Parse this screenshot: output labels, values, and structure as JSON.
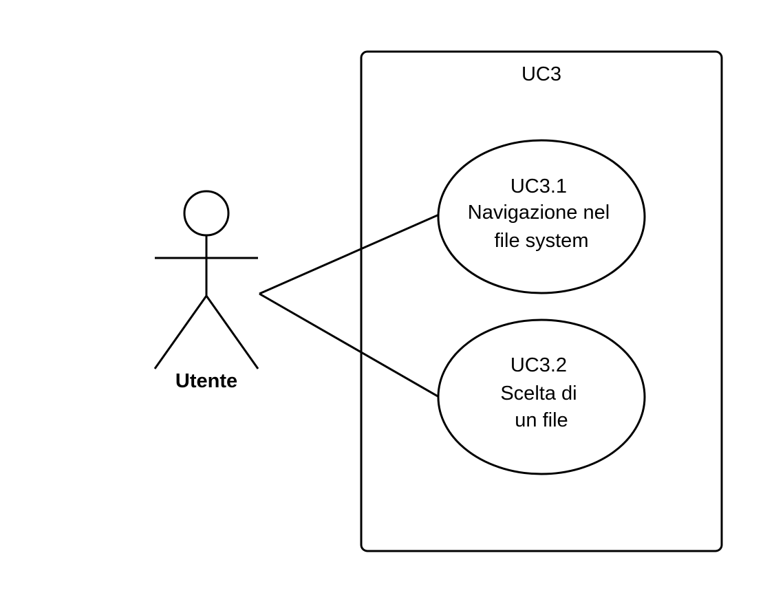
{
  "diagram": {
    "type": "uml-use-case",
    "colors": {
      "stroke": "#000000",
      "fill": "#ffffff",
      "text": "#000000"
    },
    "system": {
      "title": "UC3"
    },
    "actor": {
      "name": "Utente"
    },
    "use_cases": [
      {
        "id": "UC3.1",
        "lines": [
          "UC3.1",
          "Navigazione nel",
          "file system"
        ]
      },
      {
        "id": "UC3.2",
        "lines": [
          "UC3.2",
          "Scelta di",
          "un file"
        ]
      }
    ],
    "associations": [
      {
        "from": "Utente",
        "to": "UC3.1"
      },
      {
        "from": "Utente",
        "to": "UC3.2"
      }
    ]
  }
}
